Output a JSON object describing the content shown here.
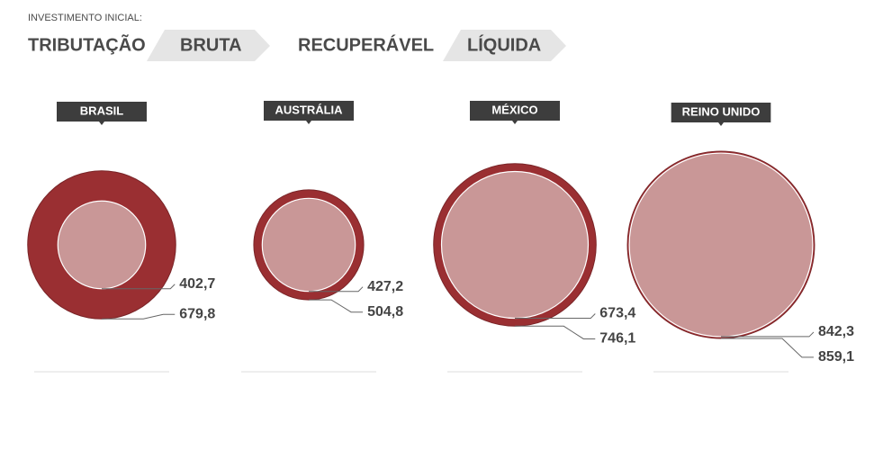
{
  "chart_data": {
    "type": "nested-circles",
    "subtitle": "INVESTIMENTO INICIAL:",
    "header": [
      "TRIBUTAÇÃO",
      "RECUPERÁVEL"
    ],
    "categories": [
      "BRASIL",
      "AUSTRÁLIA",
      "MÉXICO",
      "REINO UNIDO"
    ],
    "series": [
      {
        "name": "BRUTA",
        "color": "#9a2f32",
        "values": [
          679.8,
          504.8,
          746.1,
          859.1
        ],
        "value_labels": [
          "679,8",
          "504,8",
          "746,1",
          "859,1"
        ]
      },
      {
        "name": "LÍQUIDA",
        "color": "#c99797",
        "values": [
          402.7,
          427.2,
          673.4,
          842.3
        ],
        "value_labels": [
          "402,7",
          "427,2",
          "673,4",
          "842,3"
        ]
      }
    ]
  }
}
